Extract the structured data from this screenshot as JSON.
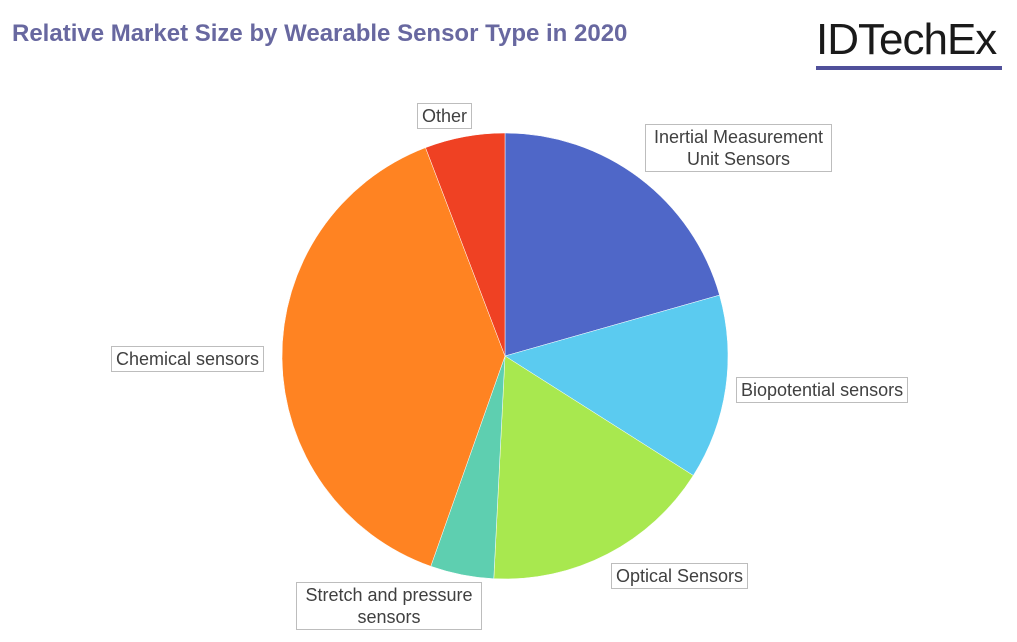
{
  "chart_data": {
    "type": "pie",
    "title": "Relative Market Size by Wearable Sensor Type in 2020",
    "slices": [
      {
        "label": "Inertial Measurement Unit Sensors",
        "value": 20.6,
        "color": "#4F67C8"
      },
      {
        "label": "Biopotential sensors",
        "value": 13.4,
        "color": "#5BCBF0"
      },
      {
        "label": "Optical Sensors",
        "value": 16.8,
        "color": "#A8E84F"
      },
      {
        "label": "Stretch and pressure sensors",
        "value": 4.6,
        "color": "#5ECFB0"
      },
      {
        "label": "Chemical sensors",
        "value": 38.8,
        "color": "#FF8322"
      },
      {
        "label": "Other",
        "value": 5.8,
        "color": "#EF4123"
      }
    ],
    "legend": "none"
  },
  "logo": {
    "text": "IDTechEx"
  }
}
